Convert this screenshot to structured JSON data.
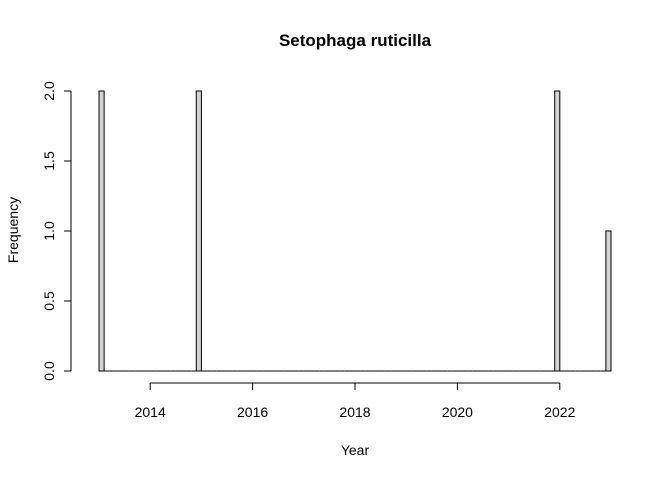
{
  "chart_data": {
    "type": "bar",
    "title": "Setophaga ruticilla",
    "xlabel": "Year",
    "ylabel": "Frequency",
    "x_ticks": [
      2014,
      2016,
      2018,
      2020,
      2022
    ],
    "x_tick_labels": [
      "2014",
      "2016",
      "2018",
      "2020",
      "2022"
    ],
    "y_ticks": [
      0,
      0.5,
      1,
      1.5,
      2
    ],
    "y_tick_labels": [
      "0.0",
      "0.5",
      "1.0",
      "1.5",
      "2.0"
    ],
    "xlim": [
      2013,
      2023
    ],
    "ylim": [
      0,
      2
    ],
    "bin_width": 0.1,
    "bars": [
      {
        "x_start": 2013.0,
        "x_end": 2013.1,
        "value": 2
      },
      {
        "x_start": 2014.9,
        "x_end": 2015.0,
        "value": 2
      },
      {
        "x_start": 2021.9,
        "x_end": 2022.0,
        "value": 2
      },
      {
        "x_start": 2022.9,
        "x_end": 2023.0,
        "value": 1
      }
    ],
    "fill_color": "#d3d3d3",
    "grid": false,
    "legend": "none"
  }
}
